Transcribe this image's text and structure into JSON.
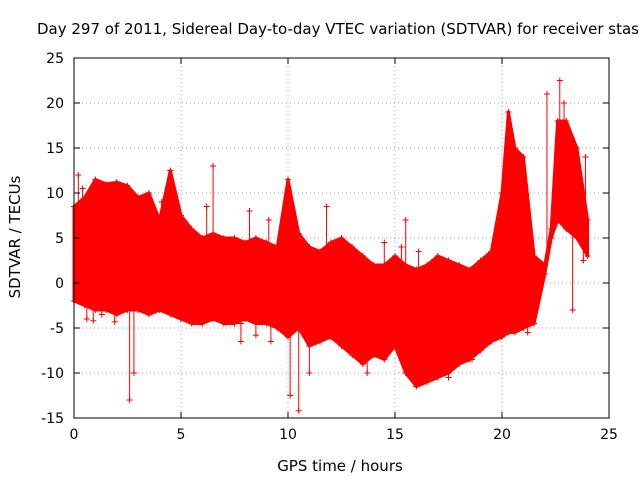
{
  "chart_data": {
    "type": "scatter",
    "title": "Day 297 of 2011, Sidereal Day-to-day VTEC variation (SDTVAR) for receiver stas",
    "xlabel": "GPS time / hours",
    "ylabel": "SDTVAR / TECUs",
    "xlim": [
      0,
      25
    ],
    "ylim": [
      -15,
      25
    ],
    "xticks": [
      "0",
      "5",
      "10",
      "15",
      "20",
      "25"
    ],
    "yticks": [
      "-15",
      "-10",
      "-5",
      "0",
      "5",
      "10",
      "15",
      "20",
      "25"
    ],
    "grid": true,
    "marker": "+",
    "series_color": "#ff0000",
    "series": [
      {
        "name": "SDTVAR",
        "envelope": {
          "x": [
            0.0,
            0.5,
            1.0,
            1.5,
            2.0,
            2.5,
            3.0,
            3.5,
            4.0,
            4.5,
            5.0,
            5.5,
            6.0,
            6.5,
            7.0,
            7.5,
            8.0,
            8.5,
            9.0,
            9.5,
            10.0,
            10.5,
            11.0,
            11.5,
            12.0,
            12.5,
            13.0,
            13.5,
            14.0,
            14.5,
            15.0,
            15.5,
            16.0,
            16.5,
            17.0,
            17.5,
            18.0,
            18.5,
            19.0,
            19.5,
            20.0,
            20.3,
            20.6,
            21.0,
            21.5,
            22.0,
            22.3,
            22.6,
            23.0,
            23.5,
            24.0
          ],
          "upper": [
            8.5,
            9.5,
            11.5,
            11.0,
            11.2,
            10.8,
            9.5,
            10.0,
            7.0,
            12.5,
            7.5,
            6.0,
            5.0,
            5.5,
            5.0,
            5.0,
            4.5,
            5.0,
            4.5,
            4.0,
            11.5,
            5.5,
            4.0,
            3.5,
            4.5,
            5.0,
            4.0,
            3.0,
            2.0,
            2.0,
            3.0,
            2.0,
            1.5,
            2.0,
            3.0,
            2.5,
            2.0,
            1.5,
            2.5,
            3.5,
            10.0,
            19.0,
            15.0,
            14.0,
            3.0,
            2.0,
            6.0,
            18.0,
            18.0,
            15.0,
            7.0
          ],
          "lower": [
            -2.0,
            -2.5,
            -3.0,
            -3.0,
            -3.5,
            -3.0,
            -3.0,
            -3.5,
            -3.0,
            -3.5,
            -4.0,
            -4.5,
            -4.5,
            -4.0,
            -4.5,
            -4.5,
            -4.0,
            -4.5,
            -4.5,
            -5.0,
            -6.0,
            -5.0,
            -7.0,
            -6.5,
            -6.0,
            -7.0,
            -8.0,
            -9.0,
            -8.0,
            -8.5,
            -7.0,
            -10.0,
            -11.5,
            -11.0,
            -10.5,
            -10.0,
            -9.0,
            -8.5,
            -7.5,
            -6.5,
            -6.0,
            -5.5,
            -5.5,
            -5.0,
            -4.5,
            1.0,
            5.0,
            7.0,
            6.0,
            5.0,
            3.0
          ]
        },
        "outliers": [
          [
            0.2,
            12.0
          ],
          [
            0.4,
            10.5
          ],
          [
            0.6,
            -4.0
          ],
          [
            0.9,
            -4.2
          ],
          [
            1.3,
            -3.5
          ],
          [
            1.9,
            -4.3
          ],
          [
            2.6,
            -13.0
          ],
          [
            2.8,
            -10.0
          ],
          [
            4.1,
            9.0
          ],
          [
            6.5,
            13.0
          ],
          [
            6.2,
            8.5
          ],
          [
            7.8,
            -4.5
          ],
          [
            7.8,
            -6.5
          ],
          [
            8.2,
            8.0
          ],
          [
            8.5,
            -5.8
          ],
          [
            9.1,
            7.0
          ],
          [
            9.2,
            -6.5
          ],
          [
            10.1,
            -12.5
          ],
          [
            10.5,
            -14.2
          ],
          [
            11.0,
            -10.0
          ],
          [
            11.8,
            8.5
          ],
          [
            13.7,
            -10.0
          ],
          [
            14.5,
            4.5
          ],
          [
            15.3,
            4.0
          ],
          [
            15.5,
            7.0
          ],
          [
            15.5,
            -9.5
          ],
          [
            16.1,
            3.5
          ],
          [
            17.5,
            -10.5
          ],
          [
            18.6,
            -8.5
          ],
          [
            20.0,
            3.0
          ],
          [
            20.5,
            -5.0
          ],
          [
            21.2,
            -5.5
          ],
          [
            22.1,
            21.0
          ],
          [
            22.7,
            22.5
          ],
          [
            22.9,
            20.0
          ],
          [
            23.3,
            -3.0
          ],
          [
            23.5,
            10.5
          ],
          [
            23.8,
            2.5
          ],
          [
            23.9,
            14.0
          ]
        ]
      }
    ]
  }
}
